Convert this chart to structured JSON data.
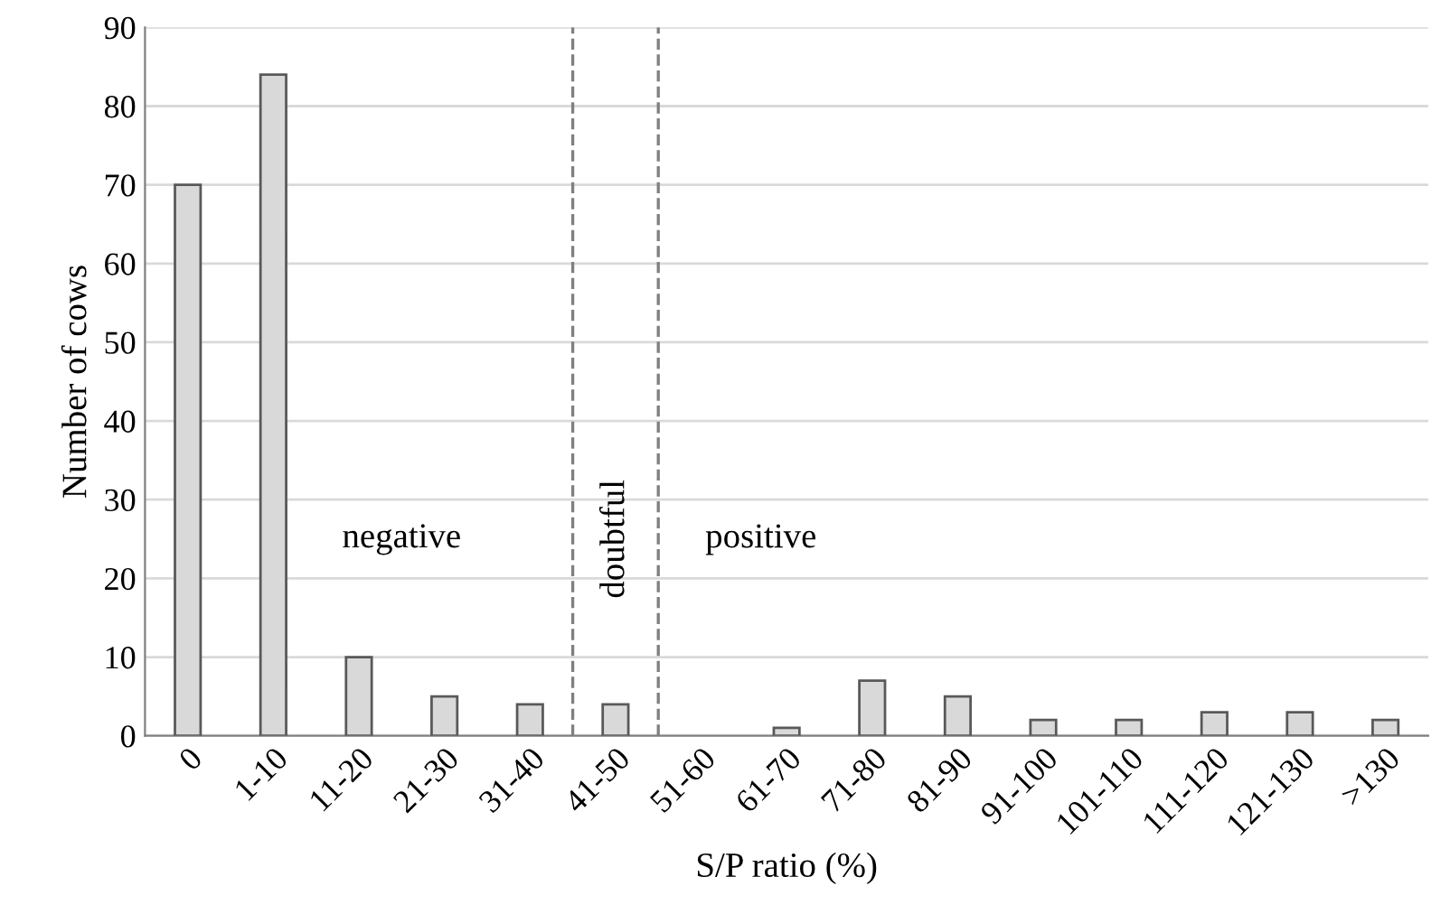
{
  "chart_data": {
    "type": "bar",
    "xlabel": "S/P ratio (%)",
    "ylabel": "Number of cows",
    "categories": [
      "0",
      "1-10",
      "11-20",
      "21-30",
      "31-40",
      "41-50",
      "51-60",
      "61-70",
      "71-80",
      "81-90",
      "91-100",
      "101-110",
      "111-120",
      "121-130",
      ">130"
    ],
    "values": [
      70,
      84,
      10,
      5,
      4,
      4,
      0,
      1,
      7,
      5,
      2,
      2,
      3,
      3,
      2
    ],
    "color": "#d9d9d9",
    "ylim": [
      0,
      90
    ],
    "yticks": [
      0,
      10,
      20,
      30,
      40,
      50,
      60,
      70,
      80,
      90
    ],
    "grid": "y",
    "annotations": [
      "negative",
      "doubtful",
      "positive"
    ]
  }
}
